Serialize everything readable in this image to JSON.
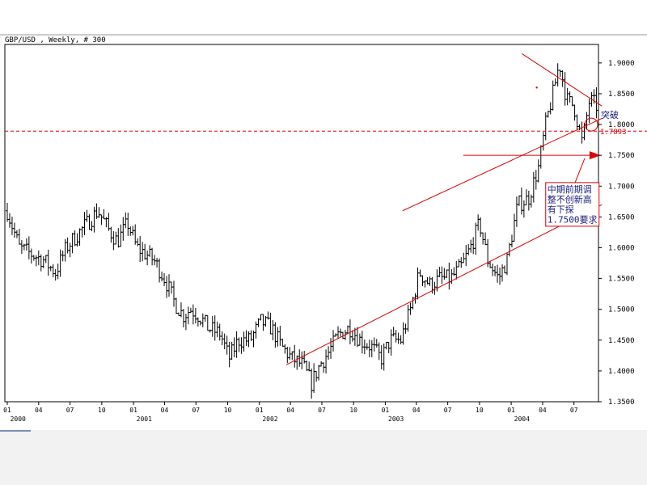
{
  "chart_data": {
    "type": "ohlc",
    "title": "GBP/USD , Weekly, # 300",
    "y_range": [
      1.35,
      1.93
    ],
    "y_ticks": [
      "1.9000",
      "1.8500",
      "1.8000",
      "1.7500",
      "1.7000",
      "1.6500",
      "1.6000",
      "1.5500",
      "1.5000",
      "1.4500",
      "1.4000",
      "1.3500"
    ],
    "y_tick_values": [
      1.9,
      1.85,
      1.8,
      1.75,
      1.7,
      1.65,
      1.6,
      1.55,
      1.5,
      1.45,
      1.4,
      1.35
    ],
    "x_range": [
      "1999-12-25",
      "2004-09-10"
    ],
    "x_month_ticks": [
      {
        "date": "2000-01",
        "label": "01"
      },
      {
        "date": "2000-04",
        "label": "04"
      },
      {
        "date": "2000-07",
        "label": "07"
      },
      {
        "date": "2000-10",
        "label": "10"
      },
      {
        "date": "2001-01",
        "label": "01"
      },
      {
        "date": "2001-04",
        "label": "04"
      },
      {
        "date": "2001-07",
        "label": "07"
      },
      {
        "date": "2001-10",
        "label": "10"
      },
      {
        "date": "2002-01",
        "label": "01"
      },
      {
        "date": "2002-04",
        "label": "04"
      },
      {
        "date": "2002-07",
        "label": "07"
      },
      {
        "date": "2002-10",
        "label": "10"
      },
      {
        "date": "2003-01",
        "label": "01"
      },
      {
        "date": "2003-04",
        "label": "04"
      },
      {
        "date": "2003-07",
        "label": "07"
      },
      {
        "date": "2003-10",
        "label": "10"
      },
      {
        "date": "2004-01",
        "label": "01"
      },
      {
        "date": "2004-04",
        "label": "04"
      },
      {
        "date": "2004-07",
        "label": "07"
      }
    ],
    "x_year_labels": [
      {
        "date": "2000-02",
        "label": "2000"
      },
      {
        "date": "2001-02",
        "label": "2001"
      },
      {
        "date": "2002-02",
        "label": "2002"
      },
      {
        "date": "2003-02",
        "label": "2003"
      },
      {
        "date": "2004-02",
        "label": "2004"
      }
    ],
    "price_path": [
      {
        "date": "2000-01-01",
        "close": 1.66
      },
      {
        "date": "2000-02-05",
        "close": 1.6
      },
      {
        "date": "2000-03-10",
        "close": 1.59
      },
      {
        "date": "2000-04-15",
        "close": 1.58
      },
      {
        "date": "2000-05-20",
        "close": 1.56
      },
      {
        "date": "2000-06-20",
        "close": 1.6
      },
      {
        "date": "2000-07-20",
        "close": 1.62
      },
      {
        "date": "2000-08-20",
        "close": 1.64
      },
      {
        "date": "2000-09-20",
        "close": 1.66
      },
      {
        "date": "2000-10-20",
        "close": 1.63
      },
      {
        "date": "2000-11-15",
        "close": 1.61
      },
      {
        "date": "2000-12-15",
        "close": 1.64
      },
      {
        "date": "2001-01-10",
        "close": 1.6
      },
      {
        "date": "2001-02-05",
        "close": 1.59
      },
      {
        "date": "2001-03-01",
        "close": 1.58
      },
      {
        "date": "2001-04-01",
        "close": 1.55
      },
      {
        "date": "2001-05-01",
        "close": 1.51
      },
      {
        "date": "2001-05-25",
        "close": 1.49
      },
      {
        "date": "2001-06-15",
        "close": 1.5
      },
      {
        "date": "2001-07-10",
        "close": 1.49
      },
      {
        "date": "2001-08-05",
        "close": 1.47
      },
      {
        "date": "2001-09-10",
        "close": 1.46
      },
      {
        "date": "2001-10-05",
        "close": 1.42
      },
      {
        "date": "2001-11-01",
        "close": 1.45
      },
      {
        "date": "2001-12-05",
        "close": 1.45
      },
      {
        "date": "2002-01-05",
        "close": 1.48
      },
      {
        "date": "2002-02-05",
        "close": 1.47
      },
      {
        "date": "2002-03-05",
        "close": 1.44
      },
      {
        "date": "2002-04-05",
        "close": 1.42
      },
      {
        "date": "2002-05-05",
        "close": 1.41
      },
      {
        "date": "2002-06-01",
        "close": 1.38
      },
      {
        "date": "2002-06-25",
        "close": 1.41
      },
      {
        "date": "2002-07-20",
        "close": 1.43
      },
      {
        "date": "2002-08-20",
        "close": 1.46
      },
      {
        "date": "2002-09-20",
        "close": 1.47
      },
      {
        "date": "2002-10-20",
        "close": 1.45
      },
      {
        "date": "2002-11-20",
        "close": 1.44
      },
      {
        "date": "2002-12-20",
        "close": 1.42
      },
      {
        "date": "2003-01-15",
        "close": 1.45
      },
      {
        "date": "2003-02-15",
        "close": 1.45
      },
      {
        "date": "2003-03-15",
        "close": 1.5
      },
      {
        "date": "2003-04-10",
        "close": 1.56
      },
      {
        "date": "2003-05-10",
        "close": 1.54
      },
      {
        "date": "2003-06-10",
        "close": 1.55
      },
      {
        "date": "2003-07-10",
        "close": 1.55
      },
      {
        "date": "2003-08-10",
        "close": 1.57
      },
      {
        "date": "2003-09-05",
        "close": 1.6
      },
      {
        "date": "2003-10-01",
        "close": 1.64
      },
      {
        "date": "2003-10-25",
        "close": 1.58
      },
      {
        "date": "2003-11-25",
        "close": 1.55
      },
      {
        "date": "2003-12-20",
        "close": 1.58
      },
      {
        "date": "2004-01-20",
        "close": 1.67
      },
      {
        "date": "2004-02-20",
        "close": 1.68
      },
      {
        "date": "2004-03-20",
        "close": 1.73
      },
      {
        "date": "2004-04-10",
        "close": 1.8
      },
      {
        "date": "2004-05-01",
        "close": 1.85
      },
      {
        "date": "2004-05-20",
        "close": 1.9
      },
      {
        "date": "2004-06-10",
        "close": 1.84
      },
      {
        "date": "2004-07-01",
        "close": 1.83
      },
      {
        "date": "2004-07-25",
        "close": 1.77
      },
      {
        "date": "2004-08-15",
        "close": 1.84
      },
      {
        "date": "2004-09-05",
        "close": 1.83
      }
    ],
    "horizontal_levels": [
      {
        "value": 1.7893,
        "label": "1.7893",
        "style": "dashed",
        "color": "#dd0000"
      },
      {
        "value": 1.75,
        "style": "solid",
        "color": "#dd0000"
      }
    ],
    "trend_lines": [
      {
        "name": "upper-channel",
        "from": {
          "date": "2003-02-20",
          "value": 1.66
        },
        "to": {
          "date": "2004-09-20",
          "value": 1.81
        }
      },
      {
        "name": "lower-channel",
        "from": {
          "date": "2002-03-20",
          "value": 1.41
        },
        "to": {
          "date": "2004-09-20",
          "value": 1.67
        }
      },
      {
        "name": "top-resistance",
        "from": {
          "date": "2004-02-01",
          "value": 1.915
        },
        "to": {
          "date": "2004-09-20",
          "value": 1.83
        }
      }
    ],
    "annotations": {
      "breakout": {
        "text": "突破",
        "date": "2004-08-20",
        "value": 1.8
      },
      "note_lines": [
        "中期前期调",
        "整不创新高",
        "有下探",
        "1.7500要求"
      ],
      "note_date": "2004-04-10",
      "note_value": 1.69
    },
    "colors": {
      "price": "#000000",
      "drawing": "#dd0000",
      "annotation_text": "#1a237e",
      "axis": "#000000"
    }
  }
}
